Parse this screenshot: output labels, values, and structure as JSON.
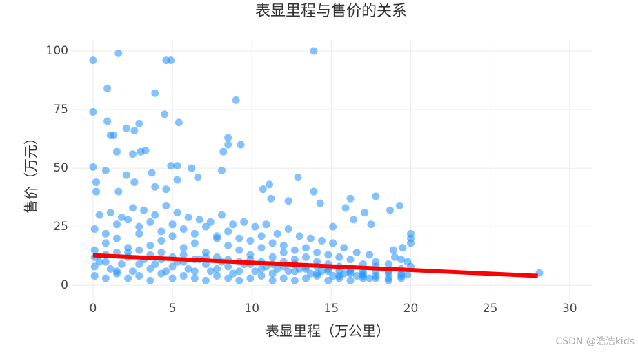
{
  "chart_data": {
    "type": "scatter",
    "title": "表显里程与售价的关系",
    "x_label": "表显里程（万公里）",
    "y_label": "售价（万元）",
    "watermark": "CSDN @浩浩kids",
    "xlim": [
      -1.3,
      31.4
    ],
    "ylim": [
      -7.6,
      104.7
    ],
    "xticks": [
      0,
      5,
      10,
      15,
      20,
      25,
      30
    ],
    "yticks": [
      0,
      25,
      50,
      75,
      100
    ],
    "grid": true,
    "series": [
      {
        "type": "scatter",
        "color": "#1e90ff",
        "x": [
          0.1,
          0.8,
          1.5,
          2.2,
          2.9,
          3.6,
          4.3,
          5.0,
          5.7,
          6.4,
          7.1,
          7.8,
          8.5,
          9.2,
          9.9,
          10.6,
          11.3,
          12.0,
          12.7,
          13.4,
          14.1,
          14.8,
          15.5,
          16.2,
          17.0,
          17.8,
          18.6,
          19.4
        ],
        "values": [
          8,
          10,
          6,
          12,
          9,
          7,
          11,
          8,
          10,
          6,
          9,
          7,
          8,
          6,
          9,
          7,
          5,
          8,
          6,
          7,
          5,
          6,
          4,
          5,
          3,
          4,
          3,
          5
        ]
      },
      {
        "type": "scatter",
        "color": "#1e90ff",
        "x": [
          0.1,
          0.8,
          1.5,
          2.2,
          2.9,
          3.6,
          4.3,
          5.0,
          5.7,
          6.4,
          7.1,
          7.8,
          8.5,
          9.2,
          9.9,
          10.6,
          11.3,
          12.0,
          12.7,
          13.4,
          14.1,
          14.8,
          15.5,
          16.2,
          17.0,
          17.8,
          18.6,
          19.4
        ],
        "values": [
          15,
          18,
          20,
          14,
          22,
          17,
          19,
          21,
          16,
          18,
          14,
          20,
          17,
          15,
          13,
          16,
          12,
          14,
          11,
          12,
          10,
          9,
          8,
          7,
          6,
          8,
          5,
          7
        ]
      },
      {
        "type": "scatter",
        "color": "#1e90ff",
        "x": [
          0.1,
          0.8,
          1.5,
          2.2,
          2.9,
          3.6,
          4.3,
          5.0,
          5.7,
          6.4,
          7.1,
          7.8,
          8.5,
          9.2,
          9.9,
          10.6,
          11.3,
          12.0,
          12.7,
          13.4,
          14.1,
          14.8,
          15.5,
          16.2,
          17.0,
          17.8,
          18.6,
          19.4
        ],
        "values": [
          24,
          22,
          26,
          28,
          25,
          27,
          23,
          26,
          24,
          22,
          25,
          21,
          23,
          20,
          19,
          21,
          18,
          17,
          15,
          16,
          14,
          13,
          12,
          11,
          9,
          10,
          9,
          11
        ]
      },
      {
        "type": "scatter",
        "color": "#1e90ff",
        "x": [
          0.1,
          0.8,
          1.5,
          2.2,
          2.9,
          3.6,
          4.3,
          5.0,
          5.7,
          6.4,
          7.1,
          7.8,
          8.5,
          9.2,
          9.9,
          10.6,
          11.3,
          12.0,
          12.7,
          13.4,
          14.1,
          14.8,
          15.5,
          16.2,
          17.0,
          17.8,
          18.6,
          19.4
        ],
        "values": [
          4,
          3,
          5,
          3,
          4,
          2,
          5,
          3,
          4,
          3,
          2,
          4,
          3,
          2,
          3,
          4,
          2,
          3,
          2,
          3,
          4,
          2,
          3,
          2,
          4,
          3,
          2,
          3
        ]
      },
      {
        "type": "scatter",
        "color": "#1e90ff",
        "x": [
          0.1,
          0.8,
          1.5,
          2.2,
          2.9,
          3.6,
          4.3,
          5.0,
          5.7,
          6.4,
          7.1,
          7.8,
          8.5,
          9.2,
          9.9,
          10.6,
          11.3,
          12.0,
          12.7,
          13.4,
          14.1,
          14.8,
          15.5,
          16.2,
          17.0,
          17.8,
          18.6,
          19.4
        ],
        "values": [
          12,
          13,
          14,
          16,
          15,
          13,
          14,
          12,
          13,
          11,
          12,
          12,
          11,
          10,
          11,
          10,
          9,
          10,
          9,
          8,
          8,
          7,
          6,
          6,
          5,
          6,
          6,
          4
        ]
      },
      {
        "type": "scatter",
        "color": "#1e90ff",
        "x": [
          0.4,
          1.1,
          1.8,
          2.5,
          3.2,
          3.9,
          4.6,
          5.3,
          6,
          6.7,
          7.4,
          8.1,
          8.8,
          9.5,
          10.2,
          10.9,
          11.6,
          12.3,
          13,
          13.7,
          14.4,
          15.1,
          15.8,
          16.6,
          17.4
        ],
        "values": [
          30,
          31,
          29,
          33,
          32,
          30,
          34,
          31,
          29,
          28,
          27,
          30,
          26,
          27,
          25,
          26,
          22,
          24,
          21,
          20,
          19,
          18,
          16,
          14,
          13
        ]
      },
      {
        "type": "scatter",
        "color": "#1e90ff",
        "x": [
          0.4,
          1.1,
          1.8,
          2.5,
          3.2,
          3.9,
          4.6,
          5.3,
          6,
          6.7,
          7.4,
          8.1,
          8.8,
          9.5,
          10.2,
          10.9,
          11.6,
          12.3,
          13,
          13.7,
          14.4,
          15.1,
          15.8,
          16.6,
          17.4
        ],
        "values": [
          10,
          7,
          9,
          6,
          11,
          9,
          6,
          10,
          7,
          11,
          6,
          10,
          5,
          9,
          6,
          8,
          7,
          6,
          7,
          5,
          6,
          4,
          5,
          4,
          3
        ]
      },
      {
        "type": "scatter",
        "color": "#1e90ff",
        "x": [
          0,
          0,
          1.6,
          0.9,
          4.6,
          4.9,
          13.9,
          3.9,
          9,
          4.5,
          0.9,
          2.9,
          5.4,
          2.1,
          2.6,
          1.1,
          1.3,
          8.5,
          8.5,
          9.3,
          8.2,
          1.5,
          3,
          3.3,
          2.5,
          0,
          4.9,
          5.3,
          6.2,
          0.8,
          8.1,
          3.7,
          12.9,
          2.1,
          6.6,
          0.2,
          2.6,
          5.3,
          3.9,
          11.1,
          10.7,
          4.6,
          13.9,
          0.2,
          1.6,
          17.8,
          11.2,
          16.2,
          12.3,
          19.3,
          18.7,
          15.9,
          14.3,
          17.1,
          20,
          20,
          20,
          19.5,
          28.1,
          17.5,
          16.4,
          15.1,
          18.9,
          19,
          19.8,
          20,
          19.8
        ],
        "values": [
          96,
          74,
          99,
          84,
          96,
          96,
          100,
          82,
          79,
          73,
          70,
          69,
          69.5,
          67,
          66,
          64,
          64,
          63,
          60,
          60,
          57,
          57,
          57,
          57.5,
          56,
          50.5,
          51,
          51,
          50,
          49,
          49,
          48,
          46,
          47,
          46,
          44,
          44,
          45,
          42,
          43,
          41,
          41,
          40,
          40,
          40,
          38,
          37,
          37,
          36,
          34,
          32,
          33,
          35,
          31,
          22,
          20,
          18,
          16,
          5.3,
          26,
          28,
          25,
          15,
          12,
          10,
          8,
          4.5
        ]
      },
      {
        "type": "line",
        "color": "#ff0000",
        "x": [
          0,
          28
        ],
        "values": [
          12.8,
          4.0
        ]
      }
    ]
  }
}
